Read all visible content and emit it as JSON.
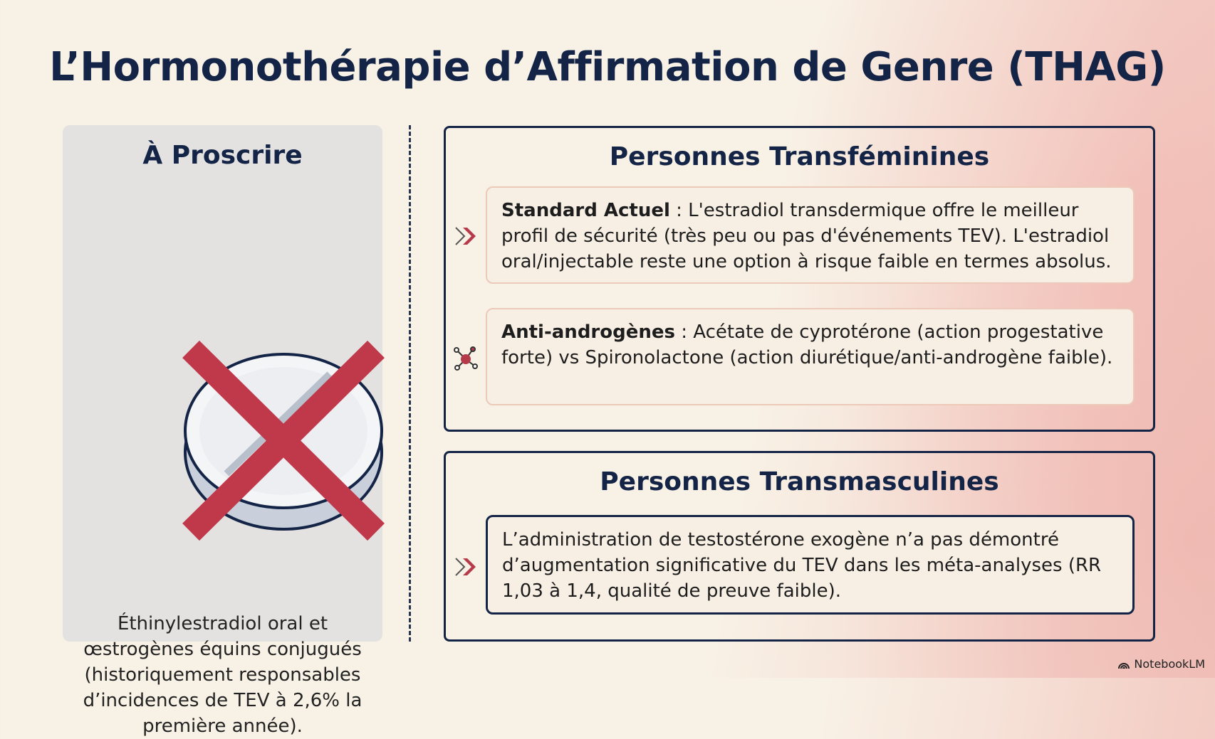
{
  "title": "L’Hormonothérapie d’Affirmation de Genre (THAG)",
  "left": {
    "heading": "À Proscrire",
    "icon": "crossed-out-pill-icon",
    "text": "Éthinylestradiol oral et œstrogènes équins conjugués (historiquement responsables d’incidences de TEV à 2,6% la première année)."
  },
  "transfem": {
    "heading": "Personnes Transféminines",
    "items": [
      {
        "icon": "double-chevron-icon",
        "label": "Standard Actuel",
        "text": " : L'estradiol transdermique offre le meilleur profil de sécurité (très peu ou pas d'événements TEV). L'estradiol oral/injectable reste une option à risque faible en termes absolus."
      },
      {
        "icon": "molecule-icon",
        "label": "Anti-androgènes",
        "text": " : Acétate de cyprotérone (action progestative forte) vs Spironolactone (action diurétique/anti-androgène faible)."
      }
    ]
  },
  "transmasc": {
    "heading": "Personnes Transmasculines",
    "icon": "double-chevron-icon",
    "text": "L’administration de testostérone exogène n’a pas démontré d’augmentation significative du TEV dans les méta-analyses (RR 1,03 à 1,4, qualité de preuve faible)."
  },
  "brand": "NotebookLM",
  "colors": {
    "navy": "#132446",
    "accent": "#c0394b",
    "panel": "#e3e2e1"
  }
}
